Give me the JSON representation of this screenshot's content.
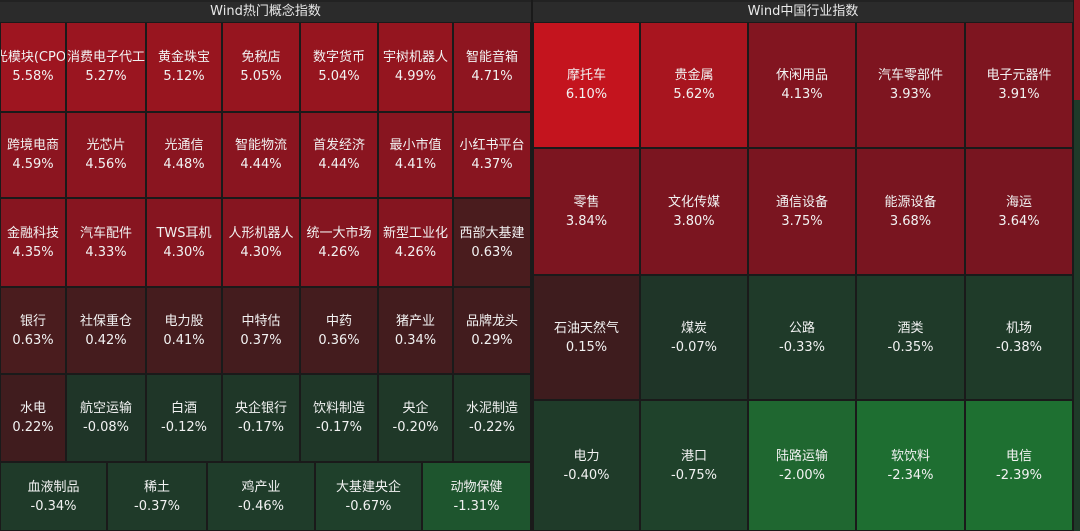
{
  "panels": [
    {
      "title": "Wind热门概念指数",
      "rows": [
        [
          {
            "name": "光模块(CPO)",
            "change": "5.58%",
            "color": "#9e1520"
          },
          {
            "name": "消费电子代工",
            "change": "5.27%",
            "color": "#9a1520"
          },
          {
            "name": "黄金珠宝",
            "change": "5.12%",
            "color": "#98151f"
          },
          {
            "name": "免税店",
            "change": "5.05%",
            "color": "#96151f"
          },
          {
            "name": "数字货币",
            "change": "5.04%",
            "color": "#96151f"
          },
          {
            "name": "宇树机器人",
            "change": "4.99%",
            "color": "#94151f"
          },
          {
            "name": "智能音箱",
            "change": "4.71%",
            "color": "#8e1520"
          }
        ],
        [
          {
            "name": "跨境电商",
            "change": "4.59%",
            "color": "#8c1520"
          },
          {
            "name": "光芯片",
            "change": "4.56%",
            "color": "#8c1520"
          },
          {
            "name": "光通信",
            "change": "4.48%",
            "color": "#8a1520"
          },
          {
            "name": "智能物流",
            "change": "4.44%",
            "color": "#8a1520"
          },
          {
            "name": "首发经济",
            "change": "4.44%",
            "color": "#8a1520"
          },
          {
            "name": "最小市值",
            "change": "4.41%",
            "color": "#881520"
          },
          {
            "name": "小红书平台",
            "change": "4.37%",
            "color": "#881520"
          }
        ],
        [
          {
            "name": "金融科技",
            "change": "4.35%",
            "color": "#871520"
          },
          {
            "name": "汽车配件",
            "change": "4.33%",
            "color": "#871520"
          },
          {
            "name": "TWS耳机",
            "change": "4.30%",
            "color": "#861520"
          },
          {
            "name": "人形机器人",
            "change": "4.30%",
            "color": "#861520"
          },
          {
            "name": "统一大市场",
            "change": "4.26%",
            "color": "#851520"
          },
          {
            "name": "新型工业化",
            "change": "4.26%",
            "color": "#851520"
          },
          {
            "name": "西部大基建",
            "change": "0.63%",
            "color": "#4a1c1e"
          }
        ],
        [
          {
            "name": "银行",
            "change": "0.63%",
            "color": "#4a1c1e"
          },
          {
            "name": "社保重仓",
            "change": "0.42%",
            "color": "#451c1e"
          },
          {
            "name": "电力股",
            "change": "0.41%",
            "color": "#451c1e"
          },
          {
            "name": "中特估",
            "change": "0.37%",
            "color": "#441c1e"
          },
          {
            "name": "中药",
            "change": "0.36%",
            "color": "#441c1e"
          },
          {
            "name": "猪产业",
            "change": "0.34%",
            "color": "#431c1e"
          },
          {
            "name": "品牌龙头",
            "change": "0.29%",
            "color": "#421c1e"
          }
        ],
        [
          {
            "name": "水电",
            "change": "0.22%",
            "color": "#401c1e"
          },
          {
            "name": "航空运输",
            "change": "-0.08%",
            "color": "#1f3528"
          },
          {
            "name": "白酒",
            "change": "-0.12%",
            "color": "#1f3628"
          },
          {
            "name": "央企银行",
            "change": "-0.17%",
            "color": "#1f3728"
          },
          {
            "name": "饮料制造",
            "change": "-0.17%",
            "color": "#1f3728"
          },
          {
            "name": "央企",
            "change": "-0.20%",
            "color": "#1f3828"
          },
          {
            "name": "水泥制造",
            "change": "-0.22%",
            "color": "#1f3828"
          }
        ],
        [
          {
            "name": "血液制品",
            "change": "-0.34%",
            "color": "#1f3a29"
          },
          {
            "name": "稀土",
            "change": "-0.37%",
            "color": "#1f3a29"
          },
          {
            "name": "鸡产业",
            "change": "-0.46%",
            "color": "#1f3c2a"
          },
          {
            "name": "大基建央企",
            "change": "-0.67%",
            "color": "#1f402b"
          },
          {
            "name": "动物保健",
            "change": "-1.31%",
            "color": "#1e552e"
          }
        ]
      ]
    },
    {
      "title": "Wind中国行业指数",
      "rows": [
        [
          {
            "name": "摩托车",
            "change": "6.10%",
            "color": "#c4141e"
          },
          {
            "name": "贵金属",
            "change": "5.62%",
            "color": "#a8151f"
          },
          {
            "name": "休闲用品",
            "change": "4.13%",
            "color": "#821520"
          },
          {
            "name": "汽车零部件",
            "change": "3.93%",
            "color": "#7e1520"
          },
          {
            "name": "电子元器件",
            "change": "3.91%",
            "color": "#7e1520"
          }
        ],
        [
          {
            "name": "零售",
            "change": "3.84%",
            "color": "#7c1520"
          },
          {
            "name": "文化传媒",
            "change": "3.80%",
            "color": "#7b1520"
          },
          {
            "name": "通信设备",
            "change": "3.75%",
            "color": "#7a1520"
          },
          {
            "name": "能源设备",
            "change": "3.68%",
            "color": "#791520"
          },
          {
            "name": "海运",
            "change": "3.64%",
            "color": "#781520"
          }
        ],
        [
          {
            "name": "石油天然气",
            "change": "0.15%",
            "color": "#3e1c1e"
          },
          {
            "name": "煤炭",
            "change": "-0.07%",
            "color": "#1f3528"
          },
          {
            "name": "公路",
            "change": "-0.33%",
            "color": "#1f3a29"
          },
          {
            "name": "酒类",
            "change": "-0.35%",
            "color": "#1f3a29"
          },
          {
            "name": "机场",
            "change": "-0.38%",
            "color": "#1f3b29"
          }
        ],
        [
          {
            "name": "电力",
            "change": "-0.40%",
            "color": "#1f3b29"
          },
          {
            "name": "港口",
            "change": "-0.75%",
            "color": "#1f422b"
          },
          {
            "name": "陆路运输",
            "change": "-2.00%",
            "color": "#1f6730"
          },
          {
            "name": "软饮料",
            "change": "-2.34%",
            "color": "#1e6e31"
          },
          {
            "name": "电信",
            "change": "-2.39%",
            "color": "#1e7031"
          }
        ]
      ]
    }
  ]
}
